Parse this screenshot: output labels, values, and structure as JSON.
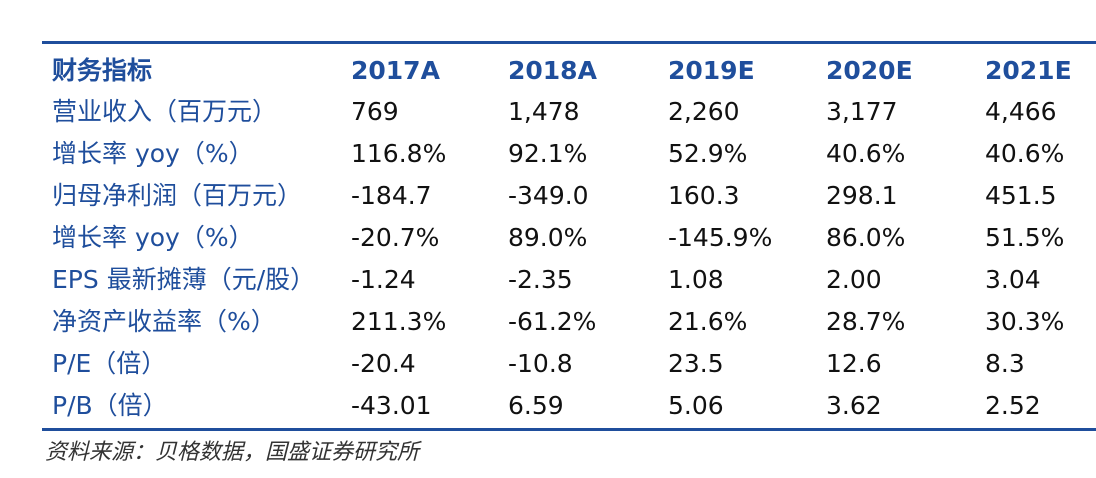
{
  "table": {
    "header": {
      "label": "财务指标",
      "years": [
        "2017A",
        "2018A",
        "2019E",
        "2020E",
        "2021E"
      ]
    },
    "rows": [
      {
        "label": "营业收入（百万元）",
        "values": [
          "769",
          "1,478",
          "2,260",
          "3,177",
          "4,466"
        ]
      },
      {
        "label": "增长率 yoy（%）",
        "values": [
          "116.8%",
          "92.1%",
          "52.9%",
          "40.6%",
          "40.6%"
        ]
      },
      {
        "label": "归母净利润（百万元）",
        "values": [
          "-184.7",
          "-349.0",
          "160.3",
          "298.1",
          "451.5"
        ]
      },
      {
        "label": "增长率 yoy（%）",
        "values": [
          "-20.7%",
          "89.0%",
          "-145.9%",
          "86.0%",
          "51.5%"
        ]
      },
      {
        "label": "EPS 最新摊薄（元/股）",
        "values": [
          "-1.24",
          "-2.35",
          "1.08",
          "2.00",
          "3.04"
        ]
      },
      {
        "label": "净资产收益率（%）",
        "values": [
          "211.3%",
          "-61.2%",
          "21.6%",
          "28.7%",
          "30.3%"
        ]
      },
      {
        "label": "P/E（倍）",
        "values": [
          "-20.4",
          "-10.8",
          "23.5",
          "12.6",
          "8.3"
        ]
      },
      {
        "label": "P/B（倍）",
        "values": [
          "-43.01",
          "6.59",
          "5.06",
          "3.62",
          "2.52"
        ]
      }
    ]
  },
  "source": "资料来源：贝格数据，国盛证券研究所",
  "colors": {
    "accent": "#1f4e9c",
    "text": "#111111"
  }
}
